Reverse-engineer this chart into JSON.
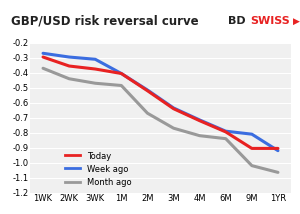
{
  "title": "GBP/USD risk reversal curve",
  "x_labels": [
    "1WK",
    "2WK",
    "3WK",
    "1M",
    "2M",
    "3M",
    "4M",
    "6M",
    "9M",
    "1YR"
  ],
  "today": [
    -0.295,
    -0.355,
    -0.375,
    -0.405,
    -0.52,
    -0.64,
    -0.72,
    -0.795,
    -0.905,
    -0.905
  ],
  "week_ago": [
    -0.27,
    -0.295,
    -0.31,
    -0.405,
    -0.515,
    -0.635,
    -0.715,
    -0.79,
    -0.81,
    -0.92
  ],
  "month_ago": [
    -0.37,
    -0.44,
    -0.47,
    -0.485,
    -0.67,
    -0.77,
    -0.82,
    -0.84,
    -1.02,
    -1.065
  ],
  "today_color": "#e82222",
  "week_ago_color": "#3b6de0",
  "month_ago_color": "#999999",
  "ylim": [
    -1.2,
    -0.2
  ],
  "yticks": [
    -1.2,
    -1.1,
    -1.0,
    -0.9,
    -0.8,
    -0.7,
    -0.6,
    -0.5,
    -0.4,
    -0.3,
    -0.2
  ],
  "bg_color": "#f0f0f0",
  "plot_bg": "#f0f0f0",
  "legend_labels": [
    "Today",
    "Week ago",
    "Month ago"
  ],
  "linewidth": 2.2,
  "title_fontsize": 8.5,
  "tick_fontsize": 6.0
}
